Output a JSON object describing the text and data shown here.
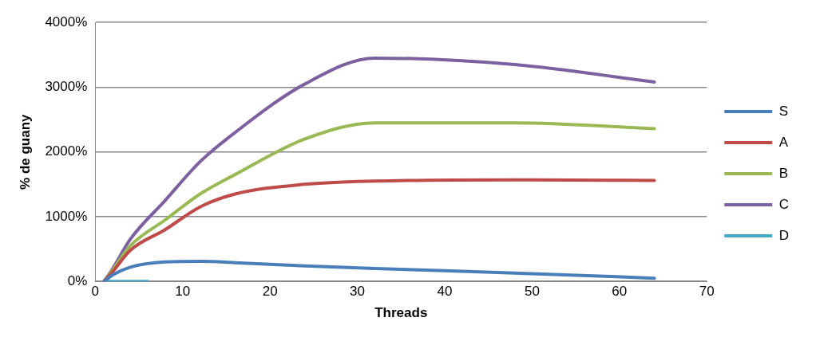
{
  "chart_data": {
    "type": "line",
    "xlabel": "Threads",
    "ylabel": "% de guany",
    "x": [
      1,
      2,
      4,
      8,
      12,
      16,
      24,
      32,
      48,
      64
    ],
    "series": [
      {
        "name": "S",
        "color": "#4a7ebb",
        "values": [
          0,
          100,
          220,
          300,
          310,
          290,
          240,
          200,
          130,
          50
        ]
      },
      {
        "name": "A",
        "color": "#be4b48",
        "values": [
          0,
          150,
          480,
          800,
          1150,
          1350,
          1500,
          1550,
          1570,
          1560
        ]
      },
      {
        "name": "B",
        "color": "#98b954",
        "values": [
          0,
          180,
          550,
          950,
          1350,
          1650,
          2200,
          2450,
          2450,
          2360
        ]
      },
      {
        "name": "C",
        "color": "#7d60a0",
        "values": [
          0,
          200,
          650,
          1250,
          1850,
          2300,
          3050,
          3450,
          3350,
          3080
        ]
      },
      {
        "name": "D",
        "color": "#46aac5",
        "x": [
          1,
          6
        ],
        "values": [
          0,
          0
        ]
      }
    ],
    "xlim": [
      0,
      70
    ],
    "xticks": [
      0,
      10,
      20,
      30,
      40,
      50,
      60,
      70
    ],
    "ylim": [
      0,
      4000
    ],
    "yticks": [
      {
        "value": 0,
        "label": "0%"
      },
      {
        "value": 1000,
        "label": "1000%"
      },
      {
        "value": 2000,
        "label": "2000%"
      },
      {
        "value": 3000,
        "label": "3000%"
      },
      {
        "value": 4000,
        "label": "4000%"
      }
    ],
    "grid": "y",
    "legend": "right",
    "marker": "none",
    "line_style": "solid"
  }
}
